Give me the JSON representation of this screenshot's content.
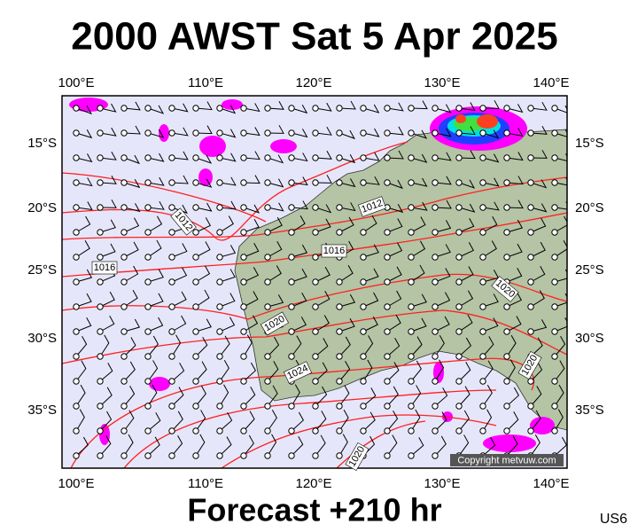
{
  "header": {
    "title": "2000 AWST Sat 5 Apr 2025"
  },
  "axes": {
    "longitudes": [
      "100°E",
      "110°E",
      "120°E",
      "130°E",
      "140°E"
    ],
    "latitudes": [
      "15°S",
      "20°S",
      "25°S",
      "30°S",
      "35°S"
    ]
  },
  "isobar_labels": [
    "1012",
    "1016",
    "1012",
    "1016",
    "1020",
    "1020",
    "1024",
    "1020",
    "1020"
  ],
  "copyright": "Copyright metvuw.com",
  "footer": {
    "forecast": "Forecast +210 hr",
    "code": "US6"
  }
}
